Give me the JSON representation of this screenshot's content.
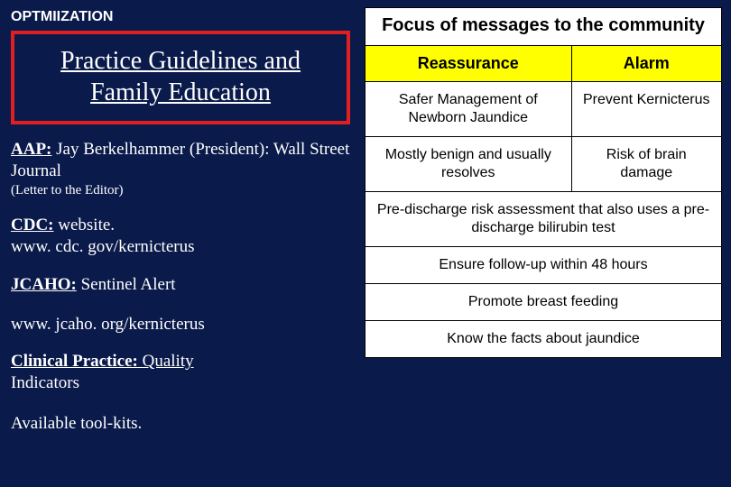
{
  "left": {
    "optim_label": "OPTMIIZATION",
    "title": "Practice Guidelines and Family Education",
    "title_border_color": "#e02020",
    "entries": {
      "aap": {
        "lead": "AAP:",
        "body": " Jay Berkelhammer (President): Wall Street Journal",
        "sub": "(Letter to the Editor)"
      },
      "cdc": {
        "lead": "CDC:",
        "body": " website.",
        "url": "www. cdc. gov/kernicterus"
      },
      "jcaho": {
        "lead": "JCAHO:",
        "body": " Sentinel Alert",
        "url": "www. jcaho. org/kernicterus"
      },
      "clinical": {
        "lead": "Clinical Practice:",
        "body_u": " Quality",
        "body_rest": "Indicators"
      },
      "cutoff": "Available tool-kits."
    }
  },
  "table": {
    "title": "Focus of messages to the community",
    "header_bg": "#ffff00",
    "col_left": "Reassurance",
    "col_right": "Alarm",
    "rows": [
      {
        "left": "Safer Management of Newborn Jaundice",
        "right": "Prevent Kernicterus"
      },
      {
        "left": "Mostly benign and usually resolves",
        "right": "Risk of brain damage"
      }
    ],
    "full_rows": [
      "Pre-discharge risk assessment that also uses a pre-discharge bilirubin  test",
      "Ensure follow-up within 48 hours",
      "Promote breast feeding",
      "Know the facts about jaundice"
    ]
  },
  "colors": {
    "slide_bg": "#0a1a4a",
    "text": "#ffffff",
    "table_bg": "#ffffff",
    "table_text": "#000000",
    "border": "#000000"
  }
}
